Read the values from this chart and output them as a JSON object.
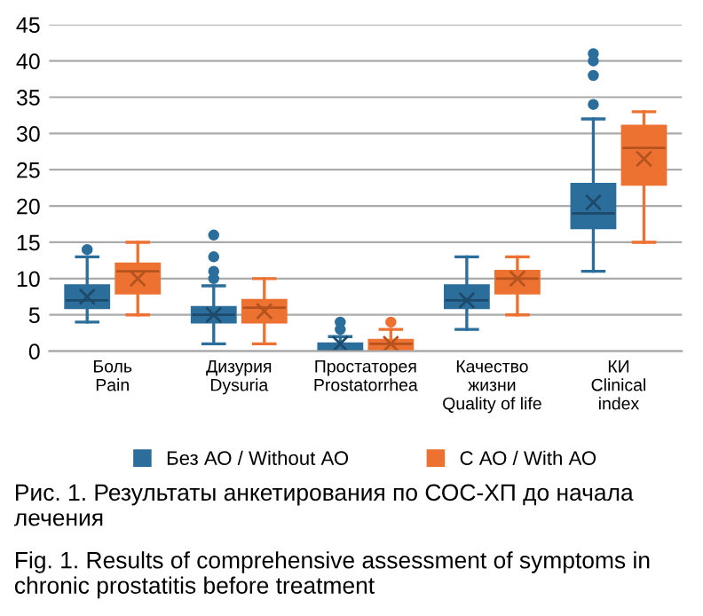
{
  "chart_data": {
    "type": "box",
    "categories": [
      "Боль\nPain",
      "Дизурия\nDysuria",
      "Простаторея\nProstatorrhea",
      "Качество\nжизни\nQuality of life",
      "КИ\nClinical\nindex"
    ],
    "series": [
      {
        "name": "Без АО / Without АО",
        "color": "#2c6e9b",
        "boxes": [
          {
            "low": 4,
            "q1": 6,
            "median": 7,
            "q3": 9,
            "high": 13,
            "mean": 7.5,
            "outliers": [
              14
            ]
          },
          {
            "low": 1,
            "q1": 4,
            "median": 5,
            "q3": 6,
            "high": 9,
            "mean": 5,
            "outliers": [
              10,
              11,
              13,
              16
            ]
          },
          {
            "low": 0,
            "q1": 0,
            "median": 0,
            "q3": 1,
            "high": 2,
            "mean": 1,
            "outliers": [
              3,
              4
            ]
          },
          {
            "low": 3,
            "q1": 6,
            "median": 7,
            "q3": 9,
            "high": 13,
            "mean": 7
          },
          {
            "low": 11,
            "q1": 17,
            "median": 19,
            "q3": 23,
            "high": 32,
            "mean": 20.5,
            "outliers": [
              34,
              38,
              40,
              41
            ]
          }
        ]
      },
      {
        "name": "С АО / With АО",
        "color": "#ed7232",
        "boxes": [
          {
            "low": 5,
            "q1": 8,
            "median": 11,
            "q3": 12,
            "high": 15,
            "mean": 10
          },
          {
            "low": 1,
            "q1": 4,
            "median": 6,
            "q3": 7,
            "high": 10,
            "mean": 5.5
          },
          {
            "low": 0,
            "q1": 0,
            "median": 1,
            "q3": 1.5,
            "high": 3,
            "mean": 1,
            "outliers": [
              4
            ]
          },
          {
            "low": 5,
            "q1": 8,
            "median": 10,
            "q3": 11,
            "high": 13,
            "mean": 10
          },
          {
            "low": 15,
            "q1": 23,
            "median": 28,
            "q3": 31,
            "high": 33,
            "mean": 26.5
          }
        ]
      }
    ],
    "ylim": [
      0,
      45
    ],
    "yticks": [
      0,
      5,
      10,
      15,
      20,
      25,
      30,
      35,
      40,
      45
    ],
    "grid": "y",
    "legend": "bottom",
    "annotations": [
      "Рис. 1. Результаты анкетирования по СОС-ХП до начала лечения",
      "Fig. 1. Results of comprehensive assessment of symptoms in chronic prostatitis before treatment"
    ]
  }
}
